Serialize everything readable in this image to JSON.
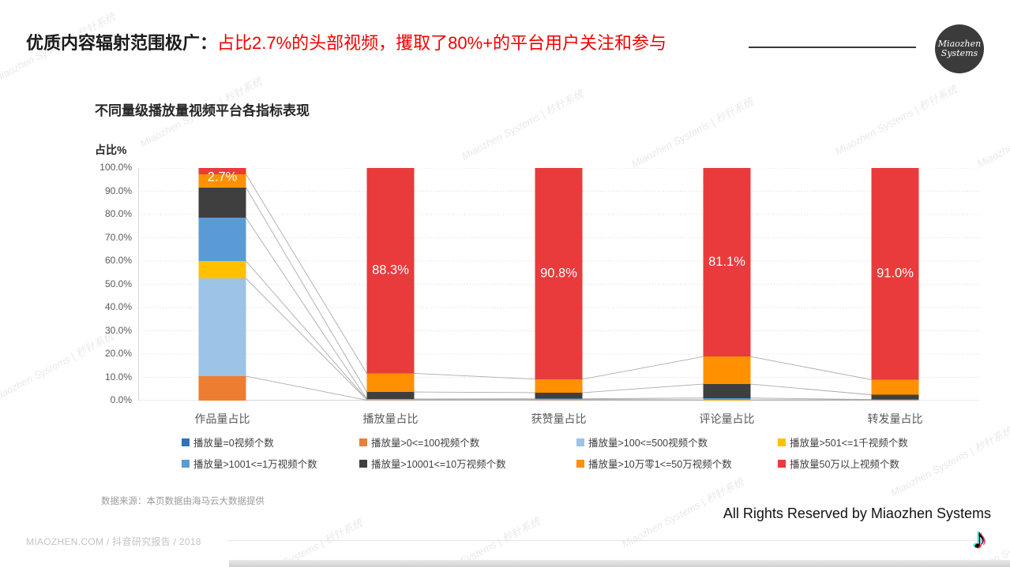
{
  "header": {
    "title_black": "优质内容辐射范围极广：",
    "title_red": "占比2.7%的头部视频，攫取了80%+的平台用户关注和参与",
    "title_red_color": "#f40000",
    "logo_line1": "Miaozhen",
    "logo_line2": "Systems"
  },
  "watermark": {
    "text": "Miaozhen Systems | 秒针系统"
  },
  "chart_data": {
    "type": "bar",
    "stacked": true,
    "title": "不同量级播放量视频平台各指标表现",
    "ylabel": "占比%",
    "ylim": [
      0,
      100
    ],
    "ytick_step": 10,
    "ytick_suffix": "%",
    "grid": "horizontal-dotted",
    "legend_position": "bottom",
    "series_lines": true,
    "categories": [
      "作品量占比",
      "播放量占比",
      "获赞量占比",
      "评论量占比",
      "转发量占比"
    ],
    "series": [
      {
        "name": "播放量=0视频个数",
        "color": "#2E75B6",
        "values": [
          0,
          0,
          0,
          0,
          0
        ]
      },
      {
        "name": "播放量>0<=100视频个数",
        "color": "#ED7D31",
        "values": [
          10.5,
          0.2,
          0.2,
          0.1,
          0.1
        ]
      },
      {
        "name": "播放量>100<=500视频个数",
        "color": "#9DC3E6",
        "values": [
          42.0,
          0.2,
          0.2,
          0.1,
          0.2
        ]
      },
      {
        "name": "播放量>501<=1千视频个数",
        "color": "#FFC000",
        "values": [
          7.5,
          0.1,
          0.1,
          0.1,
          0.1
        ]
      },
      {
        "name": "播放量>1001<=1万视频个数",
        "color": "#5B9BD5",
        "values": [
          18.6,
          0.2,
          0.3,
          0.8,
          0.1
        ]
      },
      {
        "name": "播放量>10001<=10万视频个数",
        "color": "#3F3F3F",
        "values": [
          13.0,
          3.0,
          2.6,
          6.0,
          2.0
        ]
      },
      {
        "name": "播放量>10万零1<=50万视频个数",
        "color": "#FF9000",
        "values": [
          5.7,
          8.0,
          5.8,
          11.8,
          6.5
        ]
      },
      {
        "name": "播放量50万以上视频个数",
        "color": "#E93B3B",
        "values": [
          2.7,
          88.3,
          90.8,
          81.1,
          91.0
        ]
      }
    ],
    "data_labels": {
      "series": "播放量50万以上视频个数",
      "values": [
        "2.7%",
        "88.3%",
        "90.8%",
        "81.1%",
        "91.0%"
      ]
    }
  },
  "footer": {
    "source_note": "数据来源：本页数据由海马云大数据提供",
    "rights": "All Rights Reserved by Miaozhen Systems",
    "report_line": "MIAOZHEN.COM / 抖音研究报告 / 2018",
    "tiktok_glyph": "♪"
  }
}
